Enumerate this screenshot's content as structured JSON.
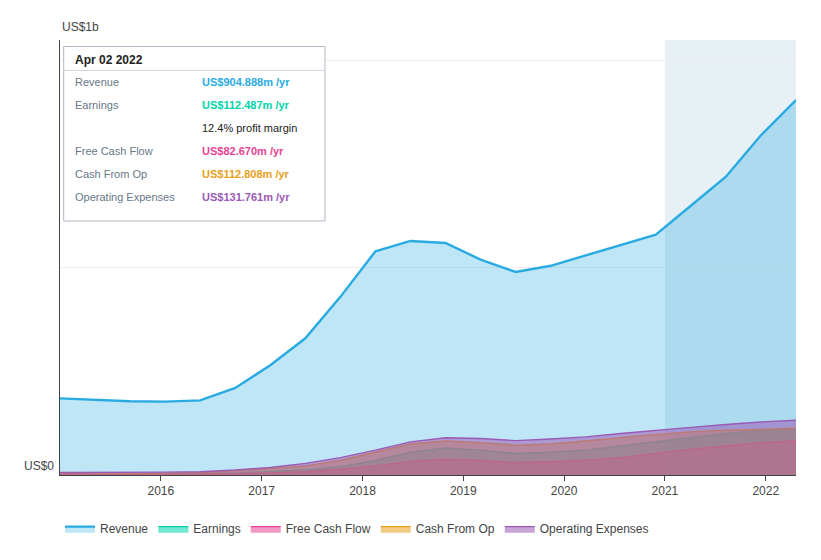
{
  "chart_data": {
    "type": "area",
    "ylabel": "US$1b",
    "annotations": [
      "US$0"
    ],
    "x": [
      2015.0,
      2015.3476190476,
      2015.6952380952,
      2016.0428571429,
      2016.3904761905,
      2016.7380952381,
      2017.0857142857,
      2017.4333333333,
      2017.780952381,
      2018.1285714286,
      2018.4761904762,
      2018.8238095238,
      2019.1714285714,
      2019.519047619,
      2019.8666666667,
      2020.2142857143,
      2020.5619047619,
      2020.9095238095,
      2021.2571428571,
      2021.6047619048,
      2021.9523809524,
      2022.3
    ],
    "series": [
      {
        "name": "Revenue",
        "color": "#29abe2",
        "values": [
          0.185,
          0.182,
          0.178,
          0.177,
          0.18,
          0.21,
          0.265,
          0.33,
          0.43,
          0.54,
          0.565,
          0.56,
          0.52,
          0.49,
          0.505,
          0.53,
          0.555,
          0.58,
          0.65,
          0.72,
          0.82,
          0.905
        ]
      },
      {
        "name": "Earnings",
        "color": "#00d4aa",
        "values": [
          0.003,
          0.003,
          0.003,
          0.003,
          0.003,
          0.005,
          0.008,
          0.012,
          0.02,
          0.035,
          0.055,
          0.065,
          0.06,
          0.052,
          0.055,
          0.06,
          0.07,
          0.08,
          0.09,
          0.1,
          0.108,
          0.112
        ]
      },
      {
        "name": "Free Cash Flow",
        "color": "#e84393",
        "values": [
          0.002,
          0.002,
          0.002,
          0.002,
          0.002,
          0.003,
          0.005,
          0.008,
          0.014,
          0.022,
          0.033,
          0.038,
          0.035,
          0.03,
          0.032,
          0.036,
          0.042,
          0.052,
          0.062,
          0.07,
          0.078,
          0.083
        ]
      },
      {
        "name": "Cash From Op",
        "color": "#e8a020",
        "values": [
          0.004,
          0.004,
          0.004,
          0.004,
          0.006,
          0.01,
          0.015,
          0.022,
          0.035,
          0.055,
          0.075,
          0.082,
          0.078,
          0.072,
          0.075,
          0.082,
          0.09,
          0.098,
          0.104,
          0.108,
          0.11,
          0.113
        ]
      },
      {
        "name": "Operating Expenses",
        "color": "#9b59b6",
        "values": [
          0.006,
          0.006,
          0.007,
          0.007,
          0.008,
          0.012,
          0.018,
          0.028,
          0.042,
          0.06,
          0.08,
          0.09,
          0.088,
          0.083,
          0.087,
          0.092,
          0.1,
          0.108,
          0.115,
          0.122,
          0.128,
          0.132
        ]
      }
    ],
    "xlim": [
      2015.0,
      2022.3
    ],
    "xticks": [
      2016,
      2017,
      2018,
      2019,
      2020,
      2021,
      2022
    ],
    "ylim": [
      0,
      1.05
    ],
    "yticks": [
      0,
      0.5,
      1.0
    ],
    "tick_labels": "x",
    "grid": true,
    "legend": "bottom",
    "highlight_x": [
      2021.0,
      2022.3
    ],
    "tooltip": {
      "title": "Apr 02 2022",
      "rows": [
        {
          "label": "Revenue",
          "value": "US$904.888m /yr",
          "color": "#29abe2"
        },
        {
          "label": "Earnings",
          "value": "US$112.487m /yr",
          "color": "#00d4aa",
          "note": "12.4% profit margin"
        },
        {
          "label": "Free Cash Flow",
          "value": "US$82.670m /yr",
          "color": "#e84393"
        },
        {
          "label": "Cash From Op",
          "value": "US$112.808m /yr",
          "color": "#e8a020"
        },
        {
          "label": "Operating Expenses",
          "value": "US$131.761m /yr",
          "color": "#9b59b6"
        }
      ]
    }
  }
}
